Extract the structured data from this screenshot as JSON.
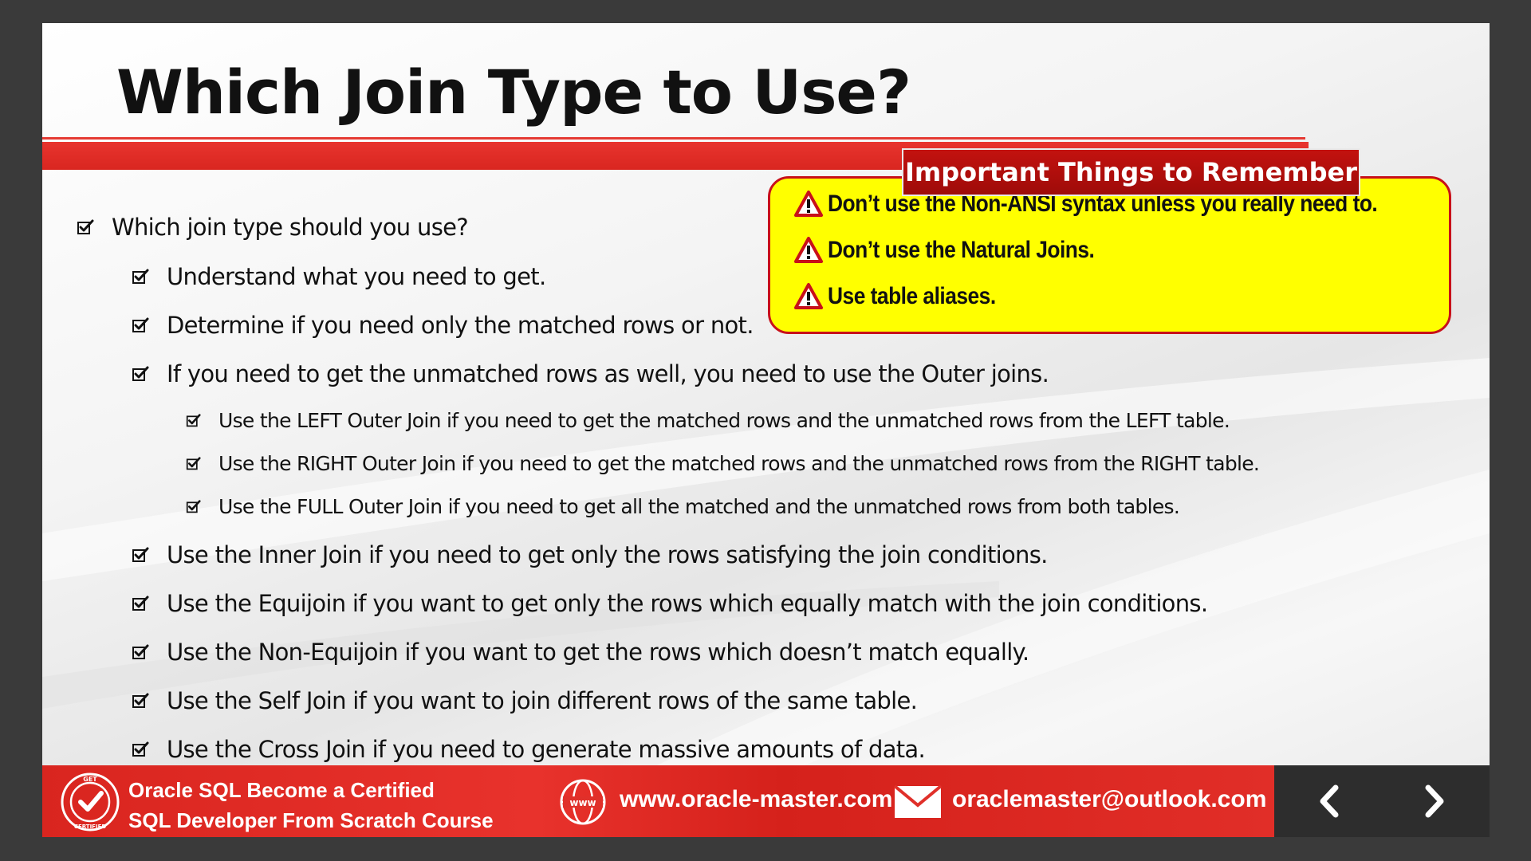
{
  "slide": {
    "title": "Which Join Type to Use?",
    "bullets": [
      {
        "level": 1,
        "text": "Which join type should you use?"
      },
      {
        "level": 2,
        "text": "Understand what you need to get."
      },
      {
        "level": 2,
        "text": "Determine if you need only the matched rows or not."
      },
      {
        "level": 2,
        "text": "If you need to get the unmatched rows as well, you need to use the Outer joins."
      },
      {
        "level": 3,
        "text": "Use the LEFT Outer Join if you need to get the matched rows and the unmatched rows from the LEFT table."
      },
      {
        "level": 3,
        "text": "Use the RIGHT Outer Join if you need to get the matched rows and the unmatched rows from the RIGHT table."
      },
      {
        "level": 3,
        "text": "Use the FULL Outer Join if you need to get all the matched and the unmatched rows from both tables."
      },
      {
        "level": 2,
        "text": "Use the Inner Join if you need to get only the rows satisfying the join conditions."
      },
      {
        "level": 2,
        "text": "Use the Equijoin if you want to get only the rows which equally match with the join conditions."
      },
      {
        "level": 2,
        "text": "Use the Non-Equijoin if you want to get the rows which doesn’t match equally."
      },
      {
        "level": 2,
        "text": "Use the Self Join if you want to join different rows of the same table."
      },
      {
        "level": 2,
        "text": "Use the Cross Join if you need to generate massive amounts of data."
      }
    ]
  },
  "callout": {
    "heading": "Important Things to Remember",
    "items": [
      "Don’t use the Non-ANSI syntax unless you really need to.",
      "Don’t use the Natural Joins.",
      "Use table aliases."
    ],
    "icon": "warning-icon"
  },
  "footer": {
    "course_line1": "Oracle SQL Become a Certified",
    "course_line2": "SQL  Developer  From Scratch Course",
    "website": "www.oracle-master.com",
    "email": "oraclemaster@outlook.com",
    "badge_top": "GET",
    "badge_bottom": "CERTIFIED",
    "globe_label": "www"
  },
  "colors": {
    "accent_red": "#e0302a",
    "callout_yellow": "#ffff00",
    "callout_tab": "#b00e0c"
  }
}
